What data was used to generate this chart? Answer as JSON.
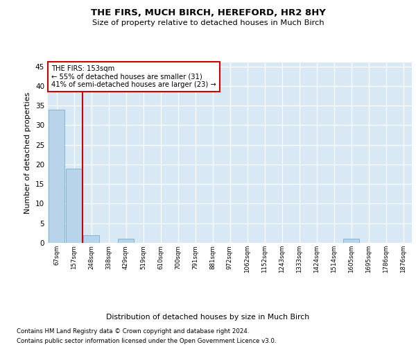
{
  "title": "THE FIRS, MUCH BIRCH, HEREFORD, HR2 8HY",
  "subtitle": "Size of property relative to detached houses in Much Birch",
  "xlabel": "Distribution of detached houses by size in Much Birch",
  "ylabel": "Number of detached properties",
  "bar_values": [
    34,
    19,
    2,
    0,
    1,
    0,
    0,
    0,
    0,
    0,
    0,
    0,
    0,
    0,
    0,
    0,
    0,
    1,
    0,
    0,
    0
  ],
  "bar_labels": [
    "67sqm",
    "157sqm",
    "248sqm",
    "338sqm",
    "429sqm",
    "519sqm",
    "610sqm",
    "700sqm",
    "791sqm",
    "881sqm",
    "972sqm",
    "1062sqm",
    "1152sqm",
    "1243sqm",
    "1333sqm",
    "1424sqm",
    "1514sqm",
    "1605sqm",
    "1695sqm",
    "1786sqm",
    "1876sqm"
  ],
  "bar_color": "#b8d4ea",
  "bar_edge_color": "#7aaec8",
  "vline_x": 1.5,
  "vline_color": "#cc0000",
  "annotation_title": "THE FIRS: 153sqm",
  "annotation_line1": "← 55% of detached houses are smaller (31)",
  "annotation_line2": "41% of semi-detached houses are larger (23) →",
  "annotation_box_color": "#cc0000",
  "ylim": [
    0,
    46
  ],
  "yticks": [
    0,
    5,
    10,
    15,
    20,
    25,
    30,
    35,
    40,
    45
  ],
  "plot_bg_color": "#d8e8f4",
  "footer1": "Contains HM Land Registry data © Crown copyright and database right 2024.",
  "footer2": "Contains public sector information licensed under the Open Government Licence v3.0."
}
